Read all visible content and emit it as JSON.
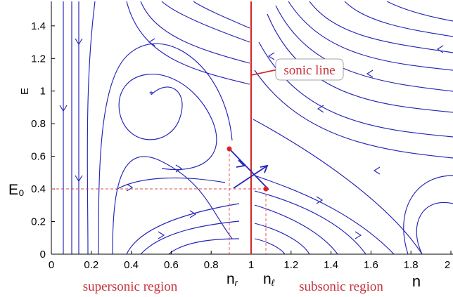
{
  "chart_data": {
    "type": "streamline",
    "xlabel": "n",
    "ylabel": "E",
    "xlim": [
      0,
      2
    ],
    "ylim": [
      0,
      1.55
    ],
    "x_ticks": [
      "0",
      "0.2",
      "0.4",
      "0.6",
      "0.8",
      "1",
      "1.2",
      "1.4",
      "1.6",
      "1.8",
      "2"
    ],
    "y_ticks": [
      "0",
      "0.2",
      "0.4",
      "0.6",
      "0.8",
      "1",
      "1.2",
      "1.4"
    ],
    "sonic_line": {
      "label": "sonic line",
      "n": 1.0,
      "color": "#d42a2a"
    },
    "equilibria": [
      {
        "name": "focus",
        "n": 0.5,
        "E": 0.99
      },
      {
        "name": "saddle",
        "n": 1.0,
        "E": 0.48
      }
    ],
    "marked_points": [
      {
        "label": "n_r",
        "n": 0.88,
        "E": 0.66
      },
      {
        "label": "n_ℓ",
        "n": 1.06,
        "E": 0.4
      }
    ],
    "E0": {
      "label": "E₀",
      "value": 0.4
    },
    "regions": {
      "left": "supersonic region",
      "right": "subsonic region"
    },
    "stream_color": "#2424b8"
  }
}
